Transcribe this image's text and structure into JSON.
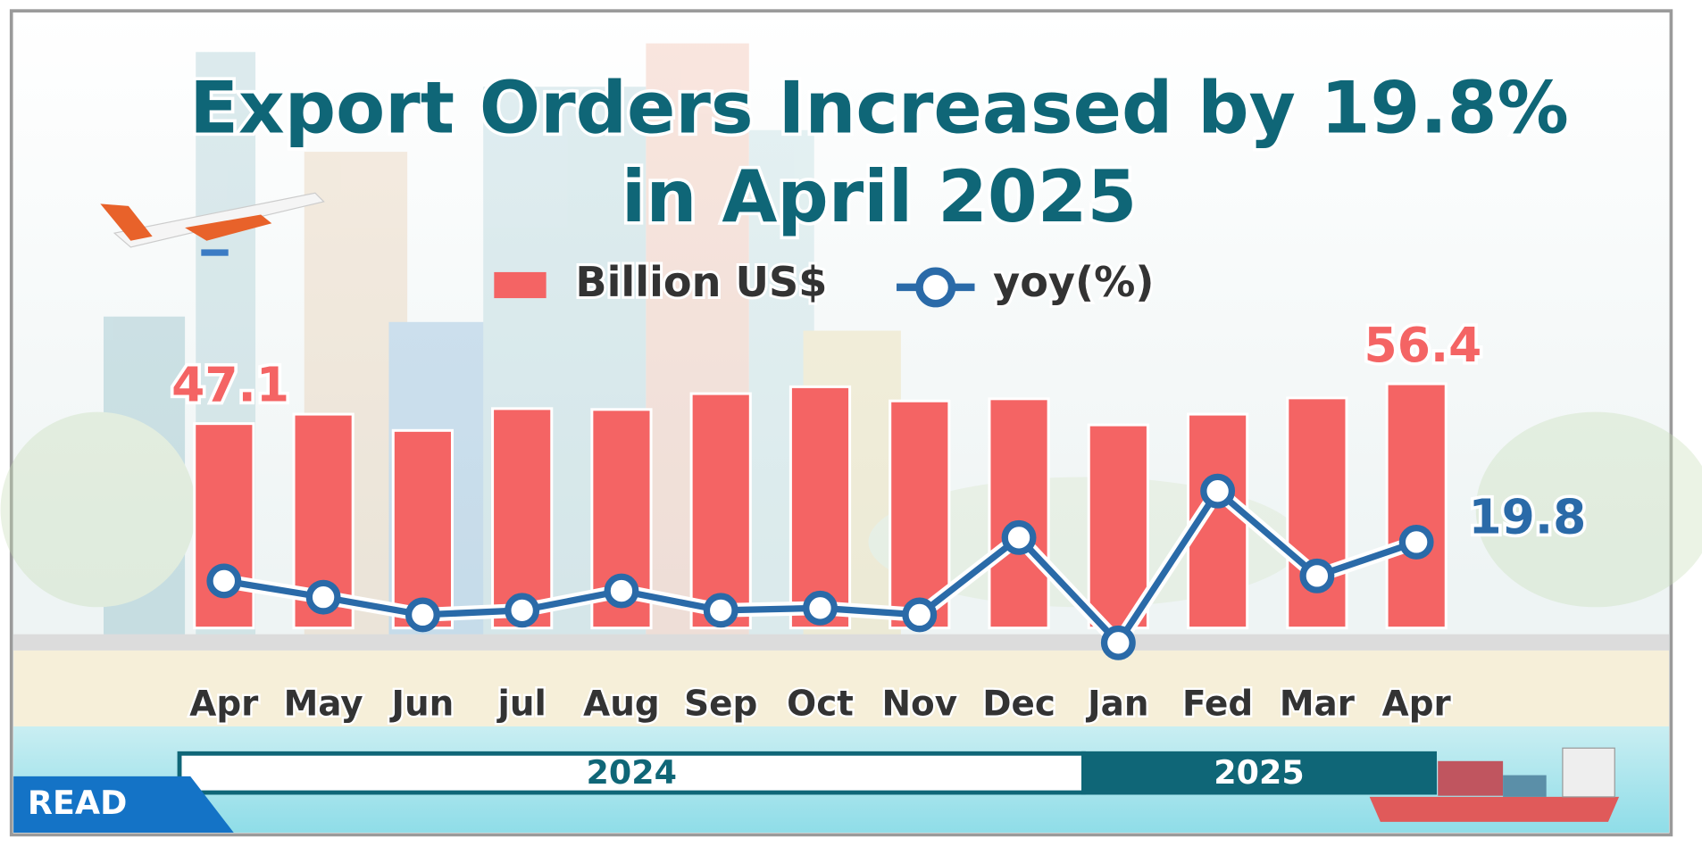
{
  "chart_data": {
    "type": "bar_line",
    "title": [
      "Export Orders Increased by 19.8%",
      "in April 2025"
    ],
    "categories": [
      "Apr",
      "May",
      "Jun",
      "jul",
      "Aug",
      "Sep",
      "Oct",
      "Nov",
      "Dec",
      "Jan",
      "Fed",
      "Mar",
      "Apr"
    ],
    "groups": [
      {
        "label": "2024",
        "span": 9
      },
      {
        "label": "2025",
        "span": 4
      }
    ],
    "series": [
      {
        "name": "Billion US$",
        "type": "bar",
        "color": "#f46464",
        "values": [
          47.1,
          49.3,
          45.5,
          50.6,
          50.4,
          54.1,
          55.7,
          52.4,
          52.9,
          46.8,
          49.3,
          53.1,
          56.4
        ],
        "value_labels": [
          "47.1",
          null,
          null,
          null,
          null,
          null,
          null,
          null,
          null,
          null,
          null,
          null,
          "56.4"
        ]
      },
      {
        "name": "yoy(%)",
        "type": "line",
        "color": "#2a6aa8",
        "values": [
          11.2,
          7.6,
          3.7,
          4.7,
          9.0,
          4.7,
          5.2,
          3.7,
          20.8,
          -2.5,
          31.1,
          12.3,
          19.8
        ],
        "value_labels": [
          null,
          null,
          null,
          null,
          null,
          null,
          null,
          null,
          null,
          null,
          null,
          null,
          "19.8"
        ]
      }
    ],
    "badge": "READ"
  }
}
